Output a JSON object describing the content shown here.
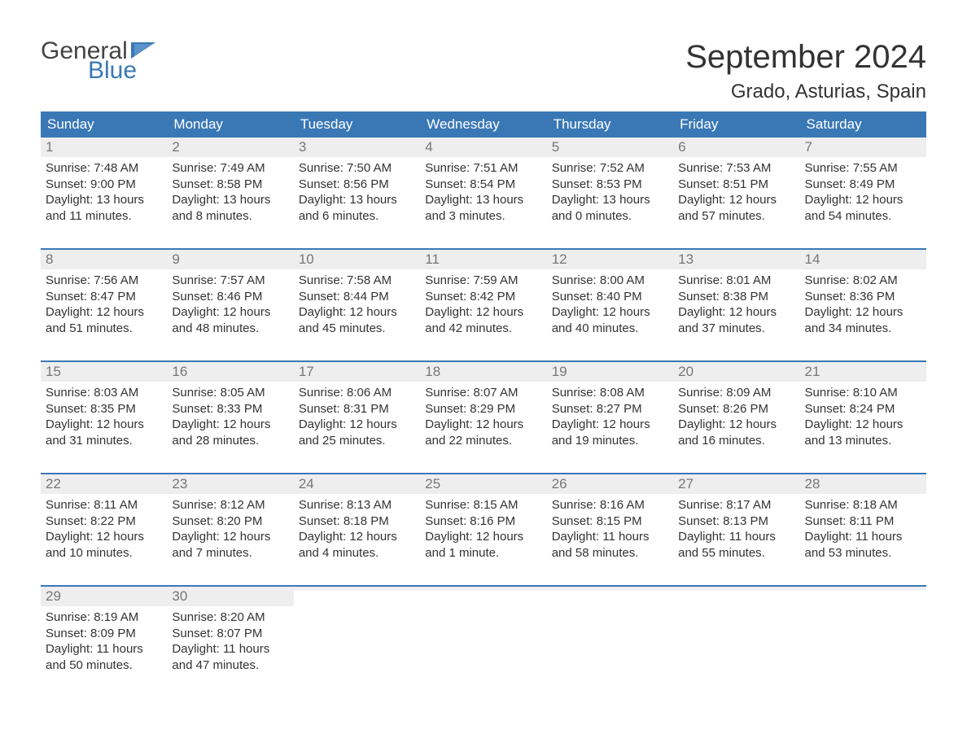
{
  "brand": {
    "line1": "General",
    "line2": "Blue",
    "brand_color": "#3a78b5"
  },
  "title": "September 2024",
  "location": "Grado, Asturias, Spain",
  "colors": {
    "header_bg": "#3a78b5",
    "header_text": "#ffffff",
    "daynum_bg": "#eeeeee",
    "daynum_text": "#777777",
    "body_text": "#333333",
    "week_border": "#3a78b5",
    "page_bg": "#ffffff"
  },
  "dow": [
    "Sunday",
    "Monday",
    "Tuesday",
    "Wednesday",
    "Thursday",
    "Friday",
    "Saturday"
  ],
  "weeks": [
    [
      {
        "n": "1",
        "sunrise": "Sunrise: 7:48 AM",
        "sunset": "Sunset: 9:00 PM",
        "day1": "Daylight: 13 hours",
        "day2": "and 11 minutes."
      },
      {
        "n": "2",
        "sunrise": "Sunrise: 7:49 AM",
        "sunset": "Sunset: 8:58 PM",
        "day1": "Daylight: 13 hours",
        "day2": "and 8 minutes."
      },
      {
        "n": "3",
        "sunrise": "Sunrise: 7:50 AM",
        "sunset": "Sunset: 8:56 PM",
        "day1": "Daylight: 13 hours",
        "day2": "and 6 minutes."
      },
      {
        "n": "4",
        "sunrise": "Sunrise: 7:51 AM",
        "sunset": "Sunset: 8:54 PM",
        "day1": "Daylight: 13 hours",
        "day2": "and 3 minutes."
      },
      {
        "n": "5",
        "sunrise": "Sunrise: 7:52 AM",
        "sunset": "Sunset: 8:53 PM",
        "day1": "Daylight: 13 hours",
        "day2": "and 0 minutes."
      },
      {
        "n": "6",
        "sunrise": "Sunrise: 7:53 AM",
        "sunset": "Sunset: 8:51 PM",
        "day1": "Daylight: 12 hours",
        "day2": "and 57 minutes."
      },
      {
        "n": "7",
        "sunrise": "Sunrise: 7:55 AM",
        "sunset": "Sunset: 8:49 PM",
        "day1": "Daylight: 12 hours",
        "day2": "and 54 minutes."
      }
    ],
    [
      {
        "n": "8",
        "sunrise": "Sunrise: 7:56 AM",
        "sunset": "Sunset: 8:47 PM",
        "day1": "Daylight: 12 hours",
        "day2": "and 51 minutes."
      },
      {
        "n": "9",
        "sunrise": "Sunrise: 7:57 AM",
        "sunset": "Sunset: 8:46 PM",
        "day1": "Daylight: 12 hours",
        "day2": "and 48 minutes."
      },
      {
        "n": "10",
        "sunrise": "Sunrise: 7:58 AM",
        "sunset": "Sunset: 8:44 PM",
        "day1": "Daylight: 12 hours",
        "day2": "and 45 minutes."
      },
      {
        "n": "11",
        "sunrise": "Sunrise: 7:59 AM",
        "sunset": "Sunset: 8:42 PM",
        "day1": "Daylight: 12 hours",
        "day2": "and 42 minutes."
      },
      {
        "n": "12",
        "sunrise": "Sunrise: 8:00 AM",
        "sunset": "Sunset: 8:40 PM",
        "day1": "Daylight: 12 hours",
        "day2": "and 40 minutes."
      },
      {
        "n": "13",
        "sunrise": "Sunrise: 8:01 AM",
        "sunset": "Sunset: 8:38 PM",
        "day1": "Daylight: 12 hours",
        "day2": "and 37 minutes."
      },
      {
        "n": "14",
        "sunrise": "Sunrise: 8:02 AM",
        "sunset": "Sunset: 8:36 PM",
        "day1": "Daylight: 12 hours",
        "day2": "and 34 minutes."
      }
    ],
    [
      {
        "n": "15",
        "sunrise": "Sunrise: 8:03 AM",
        "sunset": "Sunset: 8:35 PM",
        "day1": "Daylight: 12 hours",
        "day2": "and 31 minutes."
      },
      {
        "n": "16",
        "sunrise": "Sunrise: 8:05 AM",
        "sunset": "Sunset: 8:33 PM",
        "day1": "Daylight: 12 hours",
        "day2": "and 28 minutes."
      },
      {
        "n": "17",
        "sunrise": "Sunrise: 8:06 AM",
        "sunset": "Sunset: 8:31 PM",
        "day1": "Daylight: 12 hours",
        "day2": "and 25 minutes."
      },
      {
        "n": "18",
        "sunrise": "Sunrise: 8:07 AM",
        "sunset": "Sunset: 8:29 PM",
        "day1": "Daylight: 12 hours",
        "day2": "and 22 minutes."
      },
      {
        "n": "19",
        "sunrise": "Sunrise: 8:08 AM",
        "sunset": "Sunset: 8:27 PM",
        "day1": "Daylight: 12 hours",
        "day2": "and 19 minutes."
      },
      {
        "n": "20",
        "sunrise": "Sunrise: 8:09 AM",
        "sunset": "Sunset: 8:26 PM",
        "day1": "Daylight: 12 hours",
        "day2": "and 16 minutes."
      },
      {
        "n": "21",
        "sunrise": "Sunrise: 8:10 AM",
        "sunset": "Sunset: 8:24 PM",
        "day1": "Daylight: 12 hours",
        "day2": "and 13 minutes."
      }
    ],
    [
      {
        "n": "22",
        "sunrise": "Sunrise: 8:11 AM",
        "sunset": "Sunset: 8:22 PM",
        "day1": "Daylight: 12 hours",
        "day2": "and 10 minutes."
      },
      {
        "n": "23",
        "sunrise": "Sunrise: 8:12 AM",
        "sunset": "Sunset: 8:20 PM",
        "day1": "Daylight: 12 hours",
        "day2": "and 7 minutes."
      },
      {
        "n": "24",
        "sunrise": "Sunrise: 8:13 AM",
        "sunset": "Sunset: 8:18 PM",
        "day1": "Daylight: 12 hours",
        "day2": "and 4 minutes."
      },
      {
        "n": "25",
        "sunrise": "Sunrise: 8:15 AM",
        "sunset": "Sunset: 8:16 PM",
        "day1": "Daylight: 12 hours",
        "day2": "and 1 minute."
      },
      {
        "n": "26",
        "sunrise": "Sunrise: 8:16 AM",
        "sunset": "Sunset: 8:15 PM",
        "day1": "Daylight: 11 hours",
        "day2": "and 58 minutes."
      },
      {
        "n": "27",
        "sunrise": "Sunrise: 8:17 AM",
        "sunset": "Sunset: 8:13 PM",
        "day1": "Daylight: 11 hours",
        "day2": "and 55 minutes."
      },
      {
        "n": "28",
        "sunrise": "Sunrise: 8:18 AM",
        "sunset": "Sunset: 8:11 PM",
        "day1": "Daylight: 11 hours",
        "day2": "and 53 minutes."
      }
    ],
    [
      {
        "n": "29",
        "sunrise": "Sunrise: 8:19 AM",
        "sunset": "Sunset: 8:09 PM",
        "day1": "Daylight: 11 hours",
        "day2": "and 50 minutes."
      },
      {
        "n": "30",
        "sunrise": "Sunrise: 8:20 AM",
        "sunset": "Sunset: 8:07 PM",
        "day1": "Daylight: 11 hours",
        "day2": "and 47 minutes."
      },
      {
        "n": "",
        "sunrise": "",
        "sunset": "",
        "day1": "",
        "day2": ""
      },
      {
        "n": "",
        "sunrise": "",
        "sunset": "",
        "day1": "",
        "day2": ""
      },
      {
        "n": "",
        "sunrise": "",
        "sunset": "",
        "day1": "",
        "day2": ""
      },
      {
        "n": "",
        "sunrise": "",
        "sunset": "",
        "day1": "",
        "day2": ""
      },
      {
        "n": "",
        "sunrise": "",
        "sunset": "",
        "day1": "",
        "day2": ""
      }
    ]
  ]
}
